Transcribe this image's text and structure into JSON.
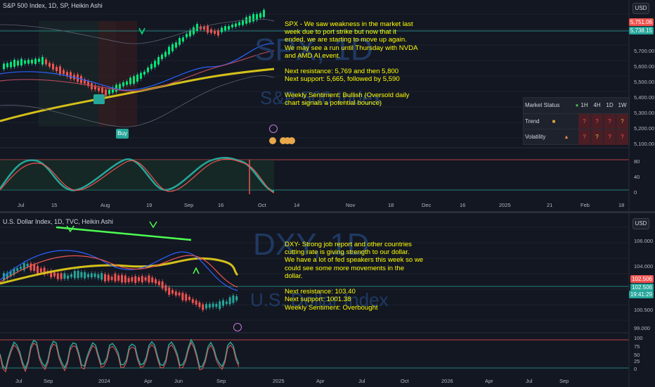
{
  "spx": {
    "legend": "S&P 500 Index, 1D, SP, Heikin Ashi",
    "currency_button": "USD",
    "watermark_symbol": "SPX, 1D",
    "watermark_name": "S&P 500 Index",
    "annotation": "SPX - We saw weakness in the market last\nweek due to port strike but now that it\nended, we are starting to move up again.\nWe may see a run until Thursday with NVDA\nand AMD AI event.\n\nNext resistance: 5,769 and then 5,800\nNext support: 5,665, followed by 5,590\n\nWeekly Sentiment: Bullish (Oversold daily\nchart signals a potential bounce)",
    "last_price": "5,751.06",
    "prev_price": "5,738.15",
    "price_axis": [
      "5,700.00",
      "5,600.00",
      "5,500.00",
      "5,400.00",
      "5,300.00",
      "5,200.00",
      "5,100.00"
    ],
    "osc_axis": [
      "80",
      "40",
      "0"
    ],
    "time_axis": [
      "Jul",
      "15",
      "Aug",
      "19",
      "Sep",
      "16",
      "Oct",
      "14",
      "Nov",
      "18",
      "Dec",
      "16",
      "2025",
      "21",
      "Feb",
      "18"
    ],
    "buy_label": "Buy",
    "sell_label": "",
    "market_status": {
      "title": "Market Status",
      "columns": [
        "1H",
        "4H",
        "1D",
        "1W"
      ],
      "rows": [
        {
          "label": "Trend",
          "values": [
            "?",
            "?",
            "?",
            "?"
          ]
        },
        {
          "label": "Volatility",
          "values": [
            "?",
            "?",
            "?",
            "?"
          ]
        }
      ]
    },
    "colors": {
      "up": "#26a69a",
      "down": "#ef5350",
      "ma_yellow": "#d4c01a",
      "ma_blue": "#2962ff",
      "ma_red": "#b2485a"
    }
  },
  "dxy": {
    "legend": "U.S. Dollar Index, 1D, TVC, Heikin Ashi",
    "currency_button": "USD",
    "watermark_symbol": "DXY, 1D",
    "watermark_name": "U.S. Dollar Index",
    "annotation": "DXY- Strong job report and other countries\ncutting rate is giving strength to our dollar.\nWe have a lot of fed speakers this week so we\ncould see some more movements in the\ndollar.\n\nNext resistance: 103.40\nNext support: 1001.38\nWeekly Sentiment: Overbought",
    "last_price": "102.506",
    "price_tag": "102.506",
    "countdown": "19:41:29",
    "price_axis": [
      "106.000",
      "104.000",
      "100.500",
      "99.000"
    ],
    "osc_axis": [
      "100",
      "75",
      "50",
      "25",
      "0"
    ],
    "time_axis": [
      "Jul",
      "Sep",
      "2024",
      "Apr",
      "Jun",
      "Sep",
      "2025",
      "Apr",
      "Jul",
      "Oct",
      "2026",
      "Apr",
      "Jul",
      "Sep"
    ]
  }
}
